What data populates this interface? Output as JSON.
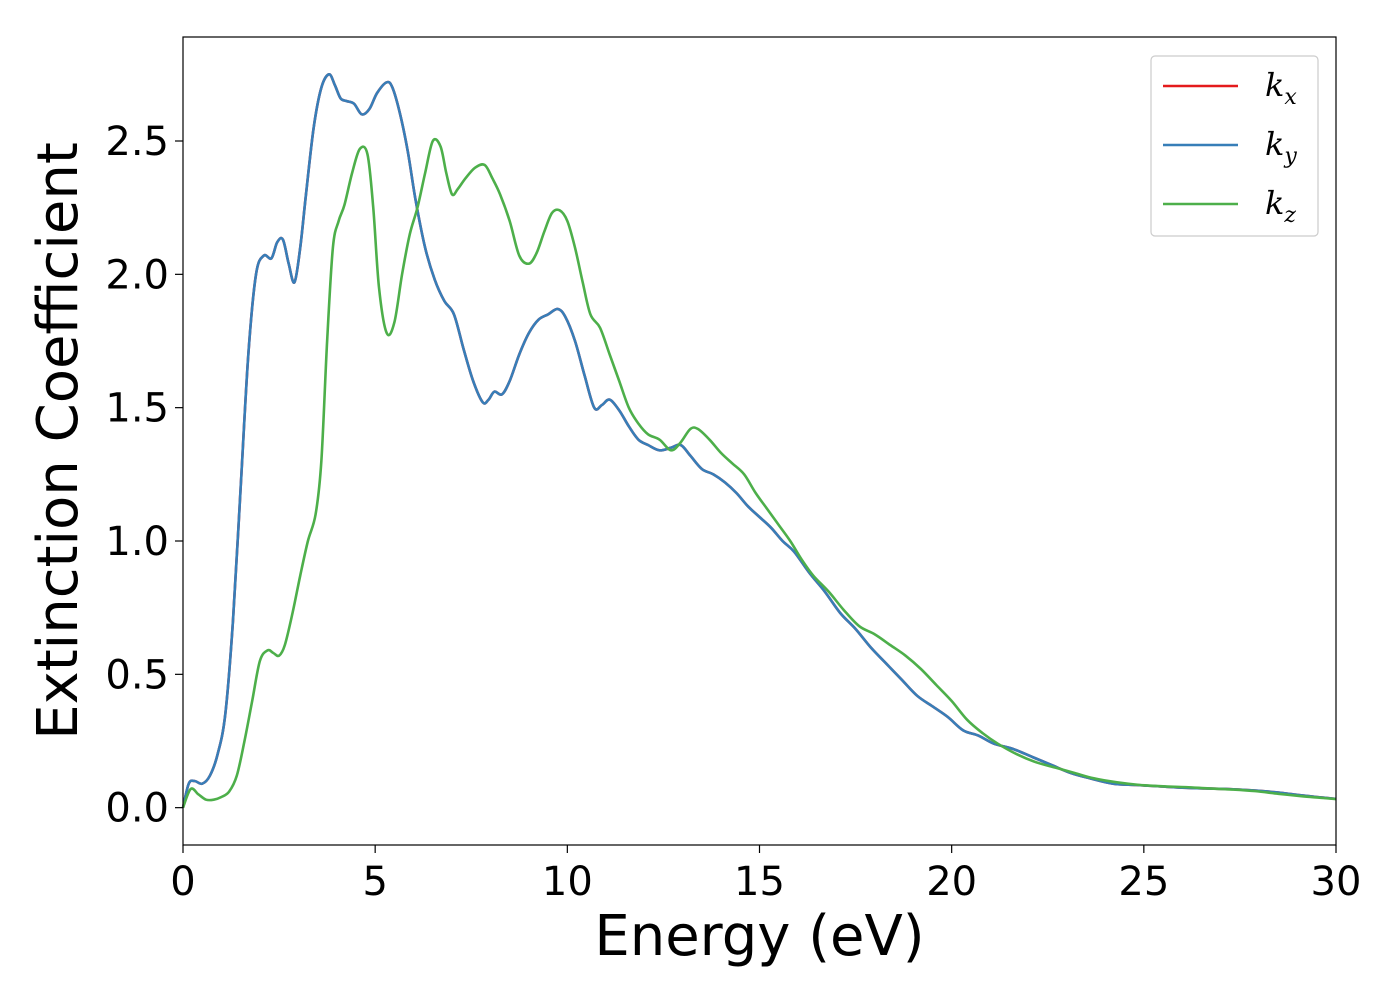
{
  "chart_data": {
    "type": "line",
    "title": "",
    "xlabel": "Energy (eV)",
    "ylabel": "Extinction Coefficient",
    "xlim": [
      0,
      30
    ],
    "ylim": [
      -0.14,
      2.89
    ],
    "xticks": [
      0,
      5,
      10,
      15,
      20,
      25,
      30
    ],
    "yticks": [
      0.0,
      0.5,
      1.0,
      1.5,
      2.0,
      2.5
    ],
    "xtick_labels": [
      "0",
      "5",
      "10",
      "15",
      "20",
      "25",
      "30"
    ],
    "ytick_labels": [
      "0.0",
      "0.5",
      "1.0",
      "1.5",
      "2.0",
      "2.5"
    ],
    "grid": false,
    "legend_position": "top-right",
    "series": [
      {
        "name": "kx",
        "label_base": "k",
        "label_sub": "x",
        "color": "#e41a1c",
        "x": [
          0,
          0.15,
          0.3,
          0.5,
          0.7,
          0.9,
          1.1,
          1.3,
          1.5,
          1.7,
          1.9,
          2.1,
          2.3,
          2.45,
          2.6,
          2.75,
          2.9,
          3.05,
          3.2,
          3.4,
          3.6,
          3.8,
          3.95,
          4.1,
          4.25,
          4.45,
          4.65,
          4.85,
          5.05,
          5.3,
          5.45,
          5.65,
          5.85,
          6.05,
          6.3,
          6.55,
          6.8,
          7.05,
          7.3,
          7.55,
          7.8,
          7.95,
          8.1,
          8.3,
          8.5,
          8.75,
          9.0,
          9.25,
          9.5,
          9.75,
          9.95,
          10.2,
          10.45,
          10.7,
          10.9,
          11.1,
          11.35,
          11.6,
          11.85,
          12.1,
          12.4,
          12.7,
          12.95,
          13.2,
          13.5,
          13.8,
          14.1,
          14.4,
          14.7,
          15.0,
          15.3,
          15.6,
          15.9,
          16.3,
          16.7,
          17.1,
          17.5,
          17.9,
          18.3,
          18.7,
          19.1,
          19.5,
          19.9,
          20.3,
          20.7,
          21.1,
          21.6,
          22.1,
          22.6,
          23.1,
          23.6,
          24.2,
          24.8,
          25.4,
          26.0,
          26.6,
          27.2,
          27.8,
          28.4,
          29.0,
          29.5,
          30
        ],
        "y": [
          0.0,
          0.09,
          0.1,
          0.09,
          0.12,
          0.2,
          0.35,
          0.7,
          1.2,
          1.7,
          2.0,
          2.07,
          2.06,
          2.12,
          2.13,
          2.04,
          1.97,
          2.1,
          2.3,
          2.55,
          2.7,
          2.75,
          2.71,
          2.66,
          2.65,
          2.64,
          2.6,
          2.62,
          2.68,
          2.72,
          2.7,
          2.6,
          2.46,
          2.28,
          2.1,
          1.98,
          1.9,
          1.85,
          1.72,
          1.6,
          1.52,
          1.53,
          1.56,
          1.55,
          1.6,
          1.7,
          1.78,
          1.83,
          1.85,
          1.87,
          1.84,
          1.75,
          1.62,
          1.5,
          1.51,
          1.53,
          1.49,
          1.43,
          1.38,
          1.36,
          1.34,
          1.35,
          1.36,
          1.32,
          1.27,
          1.25,
          1.22,
          1.18,
          1.13,
          1.09,
          1.05,
          1.0,
          0.96,
          0.88,
          0.81,
          0.73,
          0.67,
          0.6,
          0.54,
          0.48,
          0.42,
          0.38,
          0.34,
          0.29,
          0.27,
          0.24,
          0.22,
          0.19,
          0.16,
          0.13,
          0.11,
          0.09,
          0.085,
          0.08,
          0.075,
          0.072,
          0.07,
          0.065,
          0.058,
          0.048,
          0.04,
          0.033
        ]
      },
      {
        "name": "ky",
        "label_base": "k",
        "label_sub": "y",
        "color": "#377eb8",
        "x": [
          0,
          0.15,
          0.3,
          0.5,
          0.7,
          0.9,
          1.1,
          1.3,
          1.5,
          1.7,
          1.9,
          2.1,
          2.3,
          2.45,
          2.6,
          2.75,
          2.9,
          3.05,
          3.2,
          3.4,
          3.6,
          3.8,
          3.95,
          4.1,
          4.25,
          4.45,
          4.65,
          4.85,
          5.05,
          5.3,
          5.45,
          5.65,
          5.85,
          6.05,
          6.3,
          6.55,
          6.8,
          7.05,
          7.3,
          7.55,
          7.8,
          7.95,
          8.1,
          8.3,
          8.5,
          8.75,
          9.0,
          9.25,
          9.5,
          9.75,
          9.95,
          10.2,
          10.45,
          10.7,
          10.9,
          11.1,
          11.35,
          11.6,
          11.85,
          12.1,
          12.4,
          12.7,
          12.95,
          13.2,
          13.5,
          13.8,
          14.1,
          14.4,
          14.7,
          15.0,
          15.3,
          15.6,
          15.9,
          16.3,
          16.7,
          17.1,
          17.5,
          17.9,
          18.3,
          18.7,
          19.1,
          19.5,
          19.9,
          20.3,
          20.7,
          21.1,
          21.6,
          22.1,
          22.6,
          23.1,
          23.6,
          24.2,
          24.8,
          25.4,
          26.0,
          26.6,
          27.2,
          27.8,
          28.4,
          29.0,
          29.5,
          30
        ],
        "y": [
          0.0,
          0.09,
          0.1,
          0.09,
          0.12,
          0.2,
          0.35,
          0.7,
          1.2,
          1.7,
          2.0,
          2.07,
          2.06,
          2.12,
          2.13,
          2.04,
          1.97,
          2.1,
          2.3,
          2.55,
          2.7,
          2.75,
          2.71,
          2.66,
          2.65,
          2.64,
          2.6,
          2.62,
          2.68,
          2.72,
          2.7,
          2.6,
          2.46,
          2.28,
          2.1,
          1.98,
          1.9,
          1.85,
          1.72,
          1.6,
          1.52,
          1.53,
          1.56,
          1.55,
          1.6,
          1.7,
          1.78,
          1.83,
          1.85,
          1.87,
          1.84,
          1.75,
          1.62,
          1.5,
          1.51,
          1.53,
          1.49,
          1.43,
          1.38,
          1.36,
          1.34,
          1.35,
          1.36,
          1.32,
          1.27,
          1.25,
          1.22,
          1.18,
          1.13,
          1.09,
          1.05,
          1.0,
          0.96,
          0.88,
          0.81,
          0.73,
          0.67,
          0.6,
          0.54,
          0.48,
          0.42,
          0.38,
          0.34,
          0.29,
          0.27,
          0.24,
          0.22,
          0.19,
          0.16,
          0.13,
          0.11,
          0.09,
          0.085,
          0.08,
          0.075,
          0.072,
          0.07,
          0.065,
          0.058,
          0.048,
          0.04,
          0.033
        ]
      },
      {
        "name": "kz",
        "label_base": "k",
        "label_sub": "z",
        "color": "#4daf4a",
        "x": [
          0,
          0.2,
          0.4,
          0.6,
          0.8,
          1.0,
          1.2,
          1.4,
          1.6,
          1.8,
          2.0,
          2.2,
          2.35,
          2.5,
          2.65,
          2.85,
          3.05,
          3.25,
          3.45,
          3.6,
          3.75,
          3.9,
          4.05,
          4.2,
          4.4,
          4.6,
          4.8,
          4.95,
          5.1,
          5.3,
          5.5,
          5.7,
          5.9,
          6.1,
          6.3,
          6.5,
          6.7,
          6.85,
          7.0,
          7.15,
          7.35,
          7.6,
          7.85,
          8.05,
          8.25,
          8.5,
          8.75,
          9.0,
          9.2,
          9.4,
          9.6,
          9.8,
          10.0,
          10.2,
          10.4,
          10.6,
          10.85,
          11.1,
          11.35,
          11.6,
          11.85,
          12.1,
          12.4,
          12.7,
          12.95,
          13.2,
          13.4,
          13.7,
          14.0,
          14.3,
          14.6,
          14.9,
          15.2,
          15.5,
          15.8,
          16.1,
          16.4,
          16.8,
          17.2,
          17.6,
          18.0,
          18.4,
          18.8,
          19.2,
          19.6,
          20.0,
          20.4,
          20.8,
          21.2,
          21.7,
          22.2,
          22.7,
          23.2,
          23.7,
          24.3,
          24.9,
          25.5,
          26.1,
          26.7,
          27.3,
          27.9,
          28.5,
          29.1,
          29.6,
          30
        ],
        "y": [
          0.0,
          0.07,
          0.05,
          0.03,
          0.03,
          0.04,
          0.06,
          0.12,
          0.25,
          0.4,
          0.55,
          0.59,
          0.58,
          0.57,
          0.61,
          0.73,
          0.87,
          1.0,
          1.1,
          1.3,
          1.75,
          2.1,
          2.2,
          2.26,
          2.38,
          2.47,
          2.45,
          2.25,
          1.95,
          1.78,
          1.82,
          2.0,
          2.15,
          2.25,
          2.38,
          2.5,
          2.48,
          2.38,
          2.3,
          2.32,
          2.36,
          2.4,
          2.41,
          2.36,
          2.3,
          2.2,
          2.07,
          2.04,
          2.08,
          2.16,
          2.23,
          2.24,
          2.2,
          2.1,
          1.97,
          1.85,
          1.8,
          1.7,
          1.6,
          1.5,
          1.44,
          1.4,
          1.38,
          1.34,
          1.37,
          1.42,
          1.42,
          1.38,
          1.33,
          1.29,
          1.25,
          1.18,
          1.12,
          1.06,
          1.0,
          0.93,
          0.87,
          0.81,
          0.74,
          0.68,
          0.65,
          0.61,
          0.57,
          0.52,
          0.46,
          0.4,
          0.33,
          0.28,
          0.24,
          0.2,
          0.17,
          0.15,
          0.13,
          0.11,
          0.095,
          0.085,
          0.08,
          0.077,
          0.072,
          0.068,
          0.062,
          0.052,
          0.043,
          0.037,
          0.032
        ]
      }
    ]
  }
}
